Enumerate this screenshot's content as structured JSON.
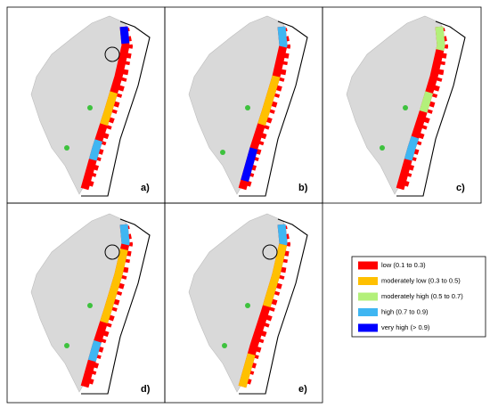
{
  "panels": [
    {
      "label": "a)"
    },
    {
      "label": "b)"
    },
    {
      "label": "c)"
    },
    {
      "label": "d)"
    },
    {
      "label": "e)"
    }
  ],
  "legend": {
    "items": [
      {
        "label": "low (0.1 to 0.3)",
        "color": "#ff0000"
      },
      {
        "label": "moderately low (0.3 to 0.5)",
        "color": "#ffc000"
      },
      {
        "label": "moderately high (0.5 to 0.7)",
        "color": "#b3f07a"
      },
      {
        "label": "high (0.7 to 0.9)",
        "color": "#3fb6f2"
      },
      {
        "label": "very high (> 0.9)",
        "color": "#0000ff"
      }
    ]
  }
}
